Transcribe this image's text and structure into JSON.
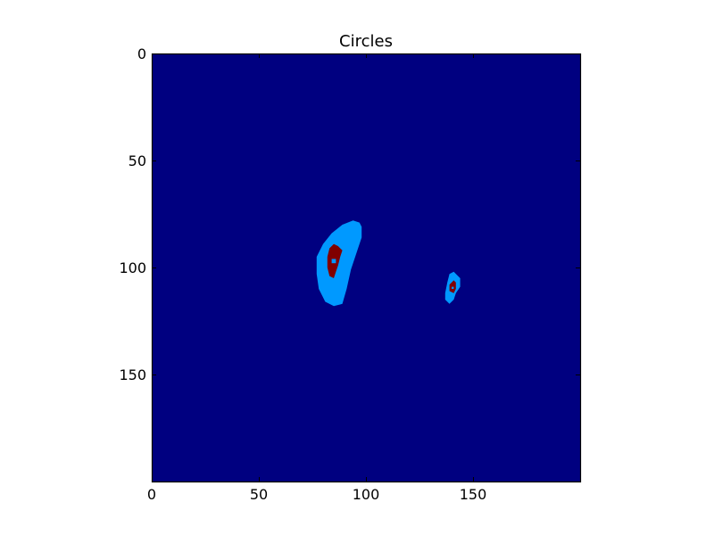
{
  "chart_data": {
    "type": "heatmap",
    "title": "Circles",
    "xlabel": "",
    "ylabel": "",
    "xlim": [
      0,
      200
    ],
    "ylim": [
      200,
      0
    ],
    "xticks": [
      0,
      50,
      100,
      150
    ],
    "yticks": [
      0,
      50,
      100,
      150
    ],
    "grid": false,
    "colors": {
      "background": "#000080",
      "ring": "#0099ff",
      "core": "#800000",
      "axes_frame": "#000000"
    },
    "blobs": [
      {
        "ring": [
          [
            97,
            79
          ],
          [
            94,
            78
          ],
          [
            89,
            80
          ],
          [
            84,
            84
          ],
          [
            80,
            89
          ],
          [
            77,
            95
          ],
          [
            77,
            103
          ],
          [
            78,
            110
          ],
          [
            81,
            116
          ],
          [
            85,
            118
          ],
          [
            89,
            117
          ],
          [
            91,
            110
          ],
          [
            93,
            101
          ],
          [
            96,
            92
          ],
          [
            98,
            86
          ],
          [
            98,
            81
          ]
        ],
        "inner": [
          [
            83,
            100
          ],
          [
            83,
            104
          ],
          [
            86,
            104
          ],
          [
            86,
            100
          ]
        ],
        "core": [
          [
            87,
            90
          ],
          [
            85,
            89
          ],
          [
            83,
            91
          ],
          [
            82,
            95
          ],
          [
            82,
            100
          ],
          [
            83,
            104
          ],
          [
            85,
            105
          ],
          [
            86,
            102
          ],
          [
            87,
            99
          ],
          [
            88,
            95
          ],
          [
            89,
            92
          ]
        ],
        "core_hole": [
          [
            84,
            96
          ],
          [
            84,
            98
          ],
          [
            86,
            98
          ],
          [
            86,
            96
          ]
        ]
      },
      {
        "ring": [
          [
            141,
            102
          ],
          [
            139,
            103
          ],
          [
            138,
            107
          ],
          [
            137,
            112
          ],
          [
            137,
            115
          ],
          [
            139,
            117
          ],
          [
            141,
            115
          ],
          [
            142,
            112
          ],
          [
            144,
            109
          ],
          [
            144,
            105
          ]
        ],
        "inner": [],
        "core": [
          [
            141,
            106
          ],
          [
            139,
            108
          ],
          [
            139,
            111
          ],
          [
            141,
            112
          ],
          [
            142,
            110
          ],
          [
            142,
            107
          ]
        ],
        "core_hole": [
          [
            140,
            109
          ],
          [
            140,
            110
          ],
          [
            141,
            110
          ],
          [
            141,
            109
          ]
        ]
      }
    ]
  }
}
